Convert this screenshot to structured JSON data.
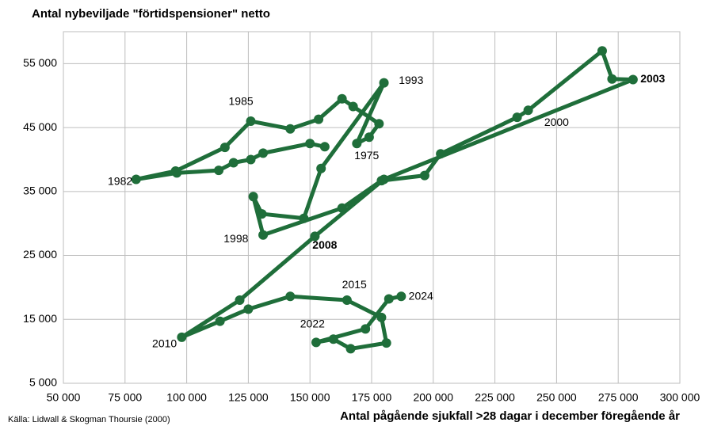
{
  "chart_data": {
    "type": "connected-scatter",
    "title": "Antal nybeviljade \"förtidspensioner\" netto",
    "x_label": "Antal pågående sjukfall >28 dagar i december föregående år",
    "source": "Källa: Lidwall & Skogman Thoursie (2000)",
    "color": "#1f6e3a",
    "grid": true,
    "x": [
      156000,
      150000,
      131000,
      126000,
      119000,
      113000,
      96000,
      79500,
      95500,
      115500,
      126000,
      142000,
      153500,
      163000,
      167500,
      178000,
      174000,
      169000,
      180000,
      154500,
      147500,
      130500,
      127000,
      131000,
      163000,
      179000,
      196500,
      203000,
      234000,
      238500,
      268500,
      272500,
      281000,
      180000,
      152000,
      121500,
      98000,
      113500,
      125000,
      142000,
      165000,
      179000,
      181000,
      166500,
      159500,
      152500,
      172500,
      182000,
      187000
    ],
    "values": [
      42000,
      42500,
      41000,
      40000,
      39500,
      38300,
      37900,
      36900,
      38200,
      41900,
      46000,
      44800,
      46300,
      49500,
      48300,
      45600,
      43500,
      42500,
      52000,
      38600,
      30800,
      31500,
      34200,
      28200,
      32400,
      36700,
      37500,
      40900,
      46600,
      47700,
      57000,
      52600,
      52500,
      36900,
      28000,
      18000,
      12200,
      14700,
      16600,
      18600,
      18000,
      15300,
      11300,
      10400,
      11900,
      11400,
      13500,
      18200,
      18600
    ],
    "annotations": [
      {
        "text": "1975",
        "x": 168000,
        "y": 40500,
        "bold": false
      },
      {
        "text": "1982",
        "x": 68000,
        "y": 36500,
        "bold": false
      },
      {
        "text": "1985",
        "x": 117000,
        "y": 49000,
        "bold": false
      },
      {
        "text": "1993",
        "x": 186000,
        "y": 52300,
        "bold": false
      },
      {
        "text": "1998",
        "x": 115000,
        "y": 27500,
        "bold": false
      },
      {
        "text": "2000",
        "x": 245000,
        "y": 45700,
        "bold": false
      },
      {
        "text": "2003",
        "x": 284000,
        "y": 52500,
        "bold": true
      },
      {
        "text": "2008",
        "x": 151000,
        "y": 26500,
        "bold": true
      },
      {
        "text": "2010",
        "x": 86000,
        "y": 11100,
        "bold": false
      },
      {
        "text": "2015",
        "x": 163000,
        "y": 20300,
        "bold": false
      },
      {
        "text": "2024",
        "x": 190000,
        "y": 18500,
        "bold": false
      },
      {
        "text": "2022",
        "x": 146000,
        "y": 14200,
        "bold": false
      }
    ],
    "xlim": [
      50000,
      300000
    ],
    "xticks": [
      {
        "value": 50000,
        "label": "50 000"
      },
      {
        "value": 75000,
        "label": "75 000"
      },
      {
        "value": 100000,
        "label": "100 000"
      },
      {
        "value": 125000,
        "label": "125 000"
      },
      {
        "value": 150000,
        "label": "150 000"
      },
      {
        "value": 175000,
        "label": "175 000"
      },
      {
        "value": 200000,
        "label": "200 000"
      },
      {
        "value": 225000,
        "label": "225 000"
      },
      {
        "value": 250000,
        "label": "250 000"
      },
      {
        "value": 275000,
        "label": "275 000"
      },
      {
        "value": 300000,
        "label": "300 000"
      }
    ],
    "ylim": [
      5000,
      60000
    ],
    "yticks": [
      {
        "value": 5000,
        "label": "5 000"
      },
      {
        "value": 15000,
        "label": "15 000"
      },
      {
        "value": 25000,
        "label": "25 000"
      },
      {
        "value": 35000,
        "label": "35 000"
      },
      {
        "value": 45000,
        "label": "45 000"
      },
      {
        "value": 55000,
        "label": "55 000"
      }
    ]
  }
}
